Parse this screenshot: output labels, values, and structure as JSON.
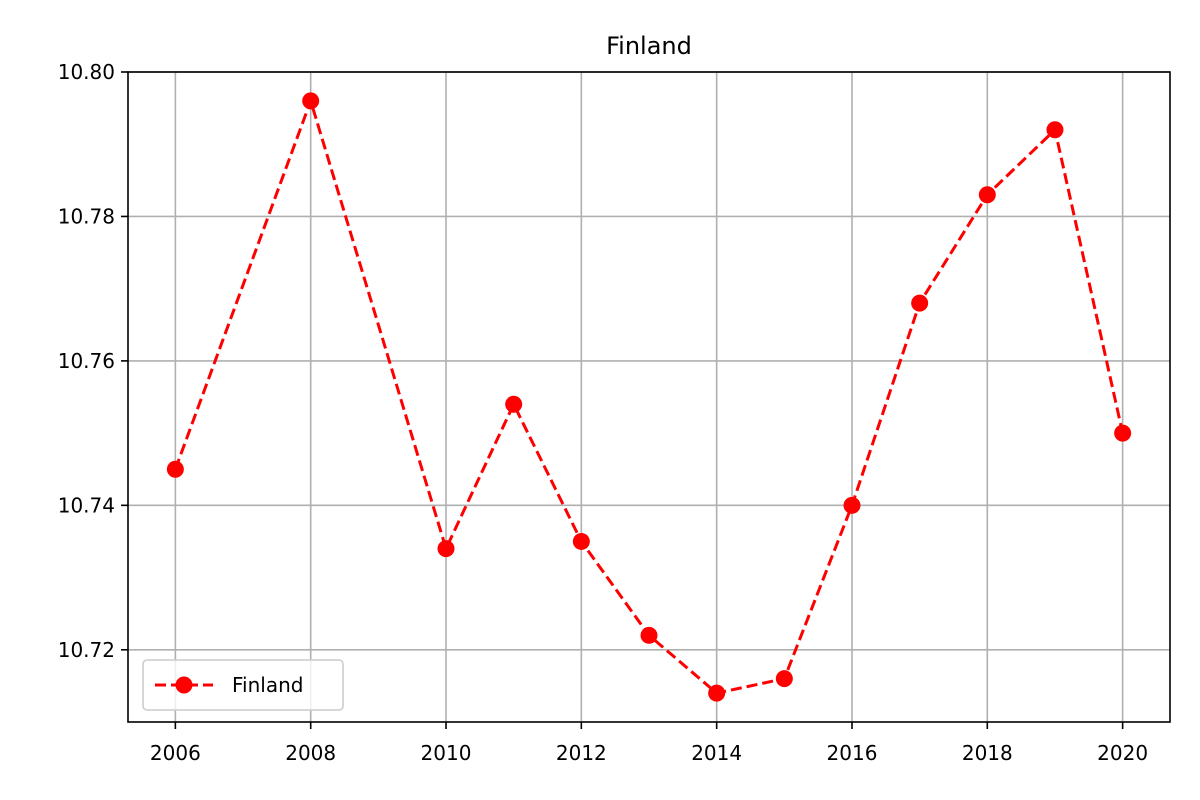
{
  "chart_data": {
    "type": "line",
    "title": "Finland",
    "xlabel": "",
    "ylabel": "",
    "x": [
      2006,
      2008,
      2010,
      2011,
      2012,
      2013,
      2014,
      2015,
      2016,
      2017,
      2018,
      2019,
      2020
    ],
    "series": [
      {
        "name": "Finland",
        "values": [
          10.745,
          10.796,
          10.734,
          10.754,
          10.735,
          10.722,
          10.714,
          10.716,
          10.74,
          10.768,
          10.783,
          10.792,
          10.75
        ],
        "color": "#ff0000",
        "line_style": "dashed",
        "marker": "circle"
      }
    ],
    "xlim": [
      2005.3,
      2020.7
    ],
    "ylim": [
      10.71,
      10.8
    ],
    "x_ticks": [
      "2006",
      "2008",
      "2010",
      "2012",
      "2014",
      "2016",
      "2018",
      "2020"
    ],
    "y_ticks": [
      "10.72",
      "10.74",
      "10.76",
      "10.78",
      "10.80"
    ],
    "grid": true,
    "legend": {
      "position": "lower-left",
      "entries": [
        "Finland"
      ]
    }
  }
}
